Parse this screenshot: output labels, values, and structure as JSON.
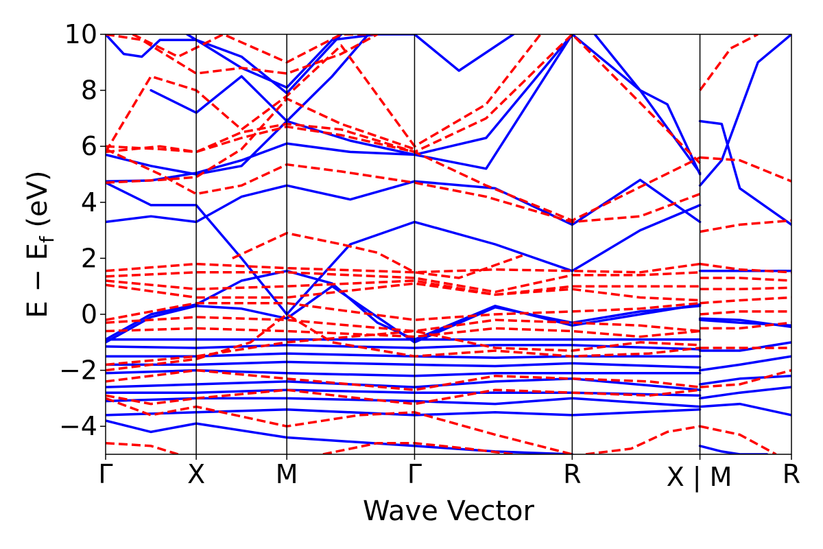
{
  "chart_data": {
    "type": "line",
    "title": "",
    "xlabel": "Wave Vector",
    "ylabel_main": "E − E",
    "ylabel_sub": "f",
    "ylabel_unit": " (eV)",
    "ylim": [
      -5,
      10
    ],
    "yticks": [
      {
        "value": -4,
        "label": "−4"
      },
      {
        "value": -2,
        "label": "−2"
      },
      {
        "value": 0,
        "label": "0"
      },
      {
        "value": 2,
        "label": "2"
      },
      {
        "value": 4,
        "label": "4"
      },
      {
        "value": 6,
        "label": "6"
      },
      {
        "value": 8,
        "label": "8"
      },
      {
        "value": 10,
        "label": "10"
      }
    ],
    "kpoints": [
      {
        "label": "Γ",
        "pos": 0.0
      },
      {
        "label": "X",
        "pos": 1.0
      },
      {
        "label": "M",
        "pos": 2.0
      },
      {
        "label": "Γ",
        "pos": 3.41
      },
      {
        "label": "R",
        "pos": 5.15
      },
      {
        "label": "X | M",
        "pos": 6.56
      },
      {
        "label": "R",
        "pos": 7.57
      }
    ],
    "xlim": [
      0,
      7.57
    ],
    "grid": false,
    "legend": "none",
    "series_styles": [
      {
        "style": "solid",
        "color": "#0000ff"
      },
      {
        "style": "dashed",
        "color": "#ff0000"
      }
    ],
    "series": [
      {
        "style": 0,
        "x": [
          0,
          0.5,
          1,
          1.5,
          2,
          2.7,
          3.41,
          4.2,
          5.15,
          5.9,
          6.56
        ],
        "y": [
          4.75,
          4.78,
          5.05,
          5.5,
          6.1,
          5.8,
          5.7,
          6.3,
          10,
          8,
          5.05
        ]
      },
      {
        "style": 0,
        "x": [
          0,
          0.5,
          1,
          1.5,
          2,
          2.7,
          3.41,
          4.2,
          5.15
        ],
        "y": [
          5.7,
          5.3,
          5.0,
          5.3,
          6.9,
          6.2,
          5.7,
          5.2,
          10
        ]
      },
      {
        "style": 0,
        "x": [
          0,
          0.5,
          1,
          1.5,
          2,
          2.7,
          3.41,
          4.3,
          5.15,
          5.9,
          6.56
        ],
        "y": [
          3.3,
          3.5,
          3.3,
          4.2,
          4.6,
          4.1,
          4.75,
          4.5,
          3.2,
          4.8,
          3.3
        ]
      },
      {
        "style": 0,
        "x": [
          0,
          0.5,
          1,
          1.5,
          2,
          2.7,
          3.41,
          4.3,
          5.15,
          5.9,
          6.56
        ],
        "y": [
          4.7,
          3.9,
          3.9,
          2.0,
          0.0,
          2.5,
          3.3,
          2.5,
          1.55,
          3.0,
          3.9
        ]
      },
      {
        "style": 0,
        "x": [
          0,
          0.5,
          1,
          1.5,
          2,
          2.5,
          3.0,
          3.41,
          4.3,
          5.15,
          5.9,
          6.56
        ],
        "y": [
          -0.9,
          0.0,
          0.35,
          1.2,
          1.55,
          1.1,
          -0.3,
          -0.9,
          0.3,
          -0.4,
          0.0,
          0.35
        ]
      },
      {
        "style": 0,
        "x": [
          0,
          0.5,
          1,
          1.5,
          2,
          2.5,
          3.41,
          4.3,
          5.15,
          5.9,
          6.56
        ],
        "y": [
          -1.0,
          -0.1,
          0.3,
          0.2,
          -0.15,
          1.0,
          -1.0,
          0.25,
          -0.3,
          0.1,
          0.3
        ]
      },
      {
        "style": 0,
        "x": [
          0,
          1,
          2,
          3.41,
          4.3,
          5.15,
          6.56
        ],
        "y": [
          -0.9,
          -0.9,
          -0.9,
          -0.9,
          -0.9,
          -0.9,
          -0.9
        ]
      },
      {
        "style": 0,
        "x": [
          0,
          1,
          2,
          3.41,
          4.3,
          5.15,
          6.56
        ],
        "y": [
          -1.15,
          -1.2,
          -1.1,
          -1.2,
          -1.1,
          -1.1,
          -1.25
        ]
      },
      {
        "style": 0,
        "x": [
          0,
          1,
          2,
          3.41,
          4.3,
          5.15,
          6.56
        ],
        "y": [
          -1.5,
          -1.5,
          -1.4,
          -1.5,
          -1.55,
          -1.5,
          -1.5
        ]
      },
      {
        "style": 0,
        "x": [
          0,
          1,
          2,
          3.41,
          4.3,
          5.15,
          6.56
        ],
        "y": [
          -1.8,
          -1.8,
          -1.7,
          -1.8,
          -1.85,
          -1.75,
          -1.9
        ]
      },
      {
        "style": 0,
        "x": [
          0,
          1,
          2,
          3.41,
          4.3,
          5.15,
          6.56
        ],
        "y": [
          -2.1,
          -2.0,
          -2.1,
          -2.2,
          -2.1,
          -2.1,
          -2.1
        ]
      },
      {
        "style": 0,
        "x": [
          0,
          1,
          2,
          3.41,
          4.3,
          5.15,
          6.56
        ],
        "y": [
          -2.6,
          -2.5,
          -2.4,
          -2.6,
          -2.4,
          -2.3,
          -2.7
        ]
      },
      {
        "style": 0,
        "x": [
          0,
          1,
          2,
          3.41,
          4.3,
          5.15,
          6.56
        ],
        "y": [
          -2.8,
          -2.8,
          -2.7,
          -2.8,
          -2.8,
          -2.8,
          -2.9
        ]
      },
      {
        "style": 0,
        "x": [
          0,
          1,
          2,
          3.41,
          4.3,
          5.15,
          6.56
        ],
        "y": [
          -3.1,
          -3.0,
          -3.0,
          -3.1,
          -3.2,
          -3.0,
          -3.3
        ]
      },
      {
        "style": 0,
        "x": [
          0,
          1,
          2,
          3.41,
          4.3,
          5.15,
          6.56
        ],
        "y": [
          -3.6,
          -3.5,
          -3.4,
          -3.6,
          -3.5,
          -3.6,
          -3.4
        ]
      },
      {
        "style": 0,
        "x": [
          0,
          0.5,
          1,
          2,
          3.41,
          4.3,
          5.15
        ],
        "y": [
          -3.8,
          -4.2,
          -3.9,
          -4.4,
          -4.7,
          -4.9,
          -5.0
        ]
      },
      {
        "style": 0,
        "x": [
          0.9,
          1.5,
          2,
          2.5,
          3.0,
          3.41,
          3.9,
          4.5
        ],
        "y": [
          10,
          8.8,
          8.1,
          9.8,
          10,
          10,
          8.7,
          10
        ]
      },
      {
        "style": 0,
        "x": [
          0,
          0.2,
          0.4,
          0.6,
          1,
          1.5,
          2,
          2.6
        ],
        "y": [
          10,
          9.3,
          9.2,
          9.8,
          9.8,
          9.2,
          7.9,
          10
        ]
      },
      {
        "style": 0,
        "x": [
          0.5,
          1,
          1.5,
          2,
          2.5,
          2.9
        ],
        "y": [
          8.0,
          7.2,
          8.5,
          6.9,
          8.5,
          10
        ]
      },
      {
        "style": 0,
        "x": [
          5.4,
          5.9,
          6.2,
          6.56
        ],
        "y": [
          10,
          8,
          7.5,
          5.0
        ]
      },
      {
        "style": 0,
        "x": [
          6.56,
          6.8,
          7.0,
          7.57
        ],
        "y": [
          1.55,
          1.55,
          1.55,
          1.55
        ]
      },
      {
        "style": 0,
        "x": [
          6.56,
          7.0,
          7.57
        ],
        "y": [
          -0.15,
          -0.2,
          -0.45
        ]
      },
      {
        "style": 0,
        "x": [
          6.56,
          7.0,
          7.57
        ],
        "y": [
          -0.2,
          -0.3,
          -0.4
        ]
      },
      {
        "style": 0,
        "x": [
          6.56,
          7.0,
          7.57
        ],
        "y": [
          -1.3,
          -1.3,
          -1.0
        ]
      },
      {
        "style": 0,
        "x": [
          6.56,
          7.0,
          7.57
        ],
        "y": [
          -2.0,
          -1.8,
          -1.5
        ]
      },
      {
        "style": 0,
        "x": [
          6.56,
          7.0,
          7.57
        ],
        "y": [
          -2.5,
          -2.3,
          -2.2
        ]
      },
      {
        "style": 0,
        "x": [
          6.56,
          7.0,
          7.57
        ],
        "y": [
          -3.0,
          -2.8,
          -2.6
        ]
      },
      {
        "style": 0,
        "x": [
          6.56,
          7.0,
          7.57
        ],
        "y": [
          -3.3,
          -3.2,
          -3.6
        ]
      },
      {
        "style": 0,
        "x": [
          6.56,
          6.8,
          7.2,
          7.57
        ],
        "y": [
          4.6,
          5.5,
          9,
          10
        ]
      },
      {
        "style": 0,
        "x": [
          6.56,
          6.8,
          7.0,
          7.57
        ],
        "y": [
          6.9,
          6.8,
          4.5,
          3.2
        ]
      },
      {
        "style": 0,
        "x": [
          6.56,
          6.8,
          7.0,
          7.3
        ],
        "y": [
          -4.7,
          -4.9,
          -5.0,
          -5.0
        ]
      },
      {
        "style": 1,
        "x": [
          0,
          1,
          2,
          3.41,
          4.3,
          5.15,
          5.9,
          6.56
        ],
        "y": [
          1.55,
          1.8,
          1.65,
          1.5,
          1.6,
          1.55,
          1.5,
          1.8
        ]
      },
      {
        "style": 1,
        "x": [
          0,
          1,
          2,
          3.41,
          4.3,
          5.15,
          5.9,
          6.56
        ],
        "y": [
          1.35,
          1.5,
          1.5,
          1.3,
          0.8,
          1.4,
          1.4,
          1.5
        ]
      },
      {
        "style": 1,
        "x": [
          0,
          1,
          2,
          3.41,
          4.3,
          5.15,
          5.9,
          6.56
        ],
        "y": [
          1.2,
          0.9,
          1.0,
          1.2,
          0.7,
          1.0,
          1.0,
          1.0
        ]
      },
      {
        "style": 1,
        "x": [
          0,
          1,
          2,
          3.41,
          4.3,
          5.15,
          5.9,
          6.56
        ],
        "y": [
          1.05,
          0.6,
          0.6,
          1.1,
          0.7,
          0.9,
          0.6,
          0.5
        ]
      },
      {
        "style": 1,
        "x": [
          0,
          1,
          2,
          3.41,
          4.3,
          5.15,
          5.9,
          6.56
        ],
        "y": [
          -0.2,
          0.4,
          0.4,
          -0.2,
          0.0,
          0.1,
          0.2,
          0.4
        ]
      },
      {
        "style": 1,
        "x": [
          0,
          1,
          2,
          3.41,
          4.3,
          5.15,
          5.9,
          6.56
        ],
        "y": [
          -0.3,
          -0.1,
          -0.2,
          -0.6,
          -0.2,
          -0.3,
          -0.4,
          -0.6
        ]
      },
      {
        "style": 1,
        "x": [
          0,
          1,
          2,
          3.41,
          4.3,
          5.15,
          5.9,
          6.56
        ],
        "y": [
          -0.6,
          -0.5,
          -0.6,
          -0.8,
          -0.5,
          -0.6,
          -0.8,
          -0.6
        ]
      },
      {
        "style": 1,
        "x": [
          0,
          1,
          2,
          3.41,
          4.3,
          5.15,
          5.9,
          6.56
        ],
        "y": [
          -1.8,
          -1.5,
          -1.0,
          -0.6,
          -1.2,
          -1.3,
          -1.0,
          -1.1
        ]
      },
      {
        "style": 1,
        "x": [
          0,
          0.6,
          1,
          1.5,
          2,
          2.6,
          3.41,
          4.2,
          5.15,
          5.9,
          6.56
        ],
        "y": [
          5.9,
          5.0,
          4.3,
          4.6,
          5.35,
          5.1,
          4.7,
          4.2,
          3.3,
          3.5,
          4.3
        ]
      },
      {
        "style": 1,
        "x": [
          0,
          0.6,
          1,
          1.5,
          2,
          2.6,
          3.41,
          4.2,
          5.15,
          6.56
        ],
        "y": [
          6.0,
          5.9,
          5.8,
          6.3,
          6.7,
          6.4,
          5.8,
          4.6,
          3.35,
          5.6
        ]
      },
      {
        "style": 1,
        "x": [
          0,
          0.6,
          1,
          1.5,
          2,
          2.6,
          3.41,
          4.2,
          5.15,
          6.56
        ],
        "y": [
          5.8,
          6.0,
          5.8,
          6.5,
          6.8,
          6.6,
          5.8,
          7.0,
          10,
          5.4
        ]
      },
      {
        "style": 1,
        "x": [
          0,
          0.6,
          1,
          1.5,
          2,
          2.6,
          3.41
        ],
        "y": [
          4.7,
          4.8,
          4.9,
          5.9,
          7.7,
          6.8,
          5.9
        ]
      },
      {
        "style": 1,
        "x": [
          0,
          0.5,
          1,
          1.5,
          2,
          2.6,
          3.41,
          4.2,
          4.8
        ],
        "y": [
          5.8,
          8.5,
          8.0,
          6.6,
          7.8,
          9.6,
          6.0,
          7.5,
          10
        ]
      },
      {
        "style": 1,
        "x": [
          0,
          0.4,
          1,
          1.5,
          2,
          2.6,
          3.0
        ],
        "y": [
          10,
          9.8,
          8.6,
          8.8,
          8.6,
          9.3,
          10
        ]
      },
      {
        "style": 1,
        "x": [
          0.3,
          0.8,
          1.3,
          2,
          2.6,
          3.0
        ],
        "y": [
          10,
          9.2,
          10,
          9.0,
          10,
          10
        ]
      },
      {
        "style": 1,
        "x": [
          1.4,
          2,
          2.6,
          3.0,
          3.41,
          3.9,
          4.6
        ],
        "y": [
          2.0,
          2.9,
          2.5,
          2.2,
          1.5,
          1.3,
          2.1
        ]
      },
      {
        "style": 1,
        "x": [
          0,
          1,
          1.6,
          2,
          2.5,
          3.41,
          4.3,
          5.15,
          6.0,
          6.56
        ],
        "y": [
          -2.0,
          -1.6,
          -1.0,
          0.0,
          -1.0,
          -1.5,
          -1.3,
          -1.5,
          -1.4,
          -1.2
        ]
      },
      {
        "style": 1,
        "x": [
          0,
          1,
          2,
          3.41,
          4.3,
          5.15,
          6.0,
          6.56
        ],
        "y": [
          -2.4,
          -2.0,
          -2.3,
          -2.7,
          -2.2,
          -2.3,
          -2.4,
          -2.6
        ]
      },
      {
        "style": 1,
        "x": [
          0,
          0.5,
          1,
          2,
          2.8,
          3.41,
          4.3,
          5.15,
          6.0,
          6.56
        ],
        "y": [
          -2.9,
          -3.2,
          -3.0,
          -2.7,
          -3.0,
          -3.2,
          -2.7,
          -2.8,
          -2.9,
          -2.7
        ]
      },
      {
        "style": 1,
        "x": [
          0,
          0.5,
          1,
          2,
          2.8,
          3.41,
          4.3,
          5.15
        ],
        "y": [
          -3.0,
          -3.6,
          -3.3,
          -4.0,
          -3.6,
          -3.5,
          -4.3,
          -5.0
        ]
      },
      {
        "style": 1,
        "x": [
          0,
          0.5,
          0.8
        ],
        "y": [
          -4.6,
          -4.7,
          -5.0
        ]
      },
      {
        "style": 1,
        "x": [
          2.4,
          3.0,
          3.41,
          4.0,
          4.5
        ],
        "y": [
          -5.0,
          -4.6,
          -4.6,
          -4.8,
          -5.0
        ]
      },
      {
        "style": 1,
        "x": [
          5.3,
          5.8,
          6.2,
          6.56
        ],
        "y": [
          -5.0,
          -4.8,
          -4.2,
          -4.0
        ]
      },
      {
        "style": 1,
        "x": [
          6.56,
          7.0,
          7.57
        ],
        "y": [
          1.8,
          1.6,
          1.5
        ]
      },
      {
        "style": 1,
        "x": [
          6.56,
          7.0,
          7.57
        ],
        "y": [
          1.3,
          1.3,
          1.2
        ]
      },
      {
        "style": 1,
        "x": [
          6.56,
          7.0,
          7.57
        ],
        "y": [
          0.9,
          0.9,
          0.95
        ]
      },
      {
        "style": 1,
        "x": [
          6.56,
          7.0,
          7.57
        ],
        "y": [
          0.4,
          0.5,
          0.6
        ]
      },
      {
        "style": 1,
        "x": [
          6.56,
          7.0,
          7.57
        ],
        "y": [
          0.0,
          0.1,
          0.1
        ]
      },
      {
        "style": 1,
        "x": [
          6.56,
          7.0,
          7.57
        ],
        "y": [
          -0.5,
          -0.5,
          -0.3
        ]
      },
      {
        "style": 1,
        "x": [
          6.56,
          7.0,
          7.57
        ],
        "y": [
          -1.2,
          -1.2,
          -1.2
        ]
      },
      {
        "style": 1,
        "x": [
          6.56,
          7.0,
          7.57
        ],
        "y": [
          -2.6,
          -2.5,
          -2.0
        ]
      },
      {
        "style": 1,
        "x": [
          6.56,
          7.0,
          7.57
        ],
        "y": [
          2.95,
          3.2,
          3.35
        ]
      },
      {
        "style": 1,
        "x": [
          6.56,
          7.0,
          7.57
        ],
        "y": [
          5.6,
          5.5,
          4.75
        ]
      },
      {
        "style": 1,
        "x": [
          6.56,
          6.9,
          7.2
        ],
        "y": [
          8.0,
          9.5,
          10
        ]
      },
      {
        "style": 1,
        "x": [
          6.56,
          7.0,
          7.4
        ],
        "y": [
          -4.0,
          -4.3,
          -5.0
        ]
      }
    ]
  }
}
